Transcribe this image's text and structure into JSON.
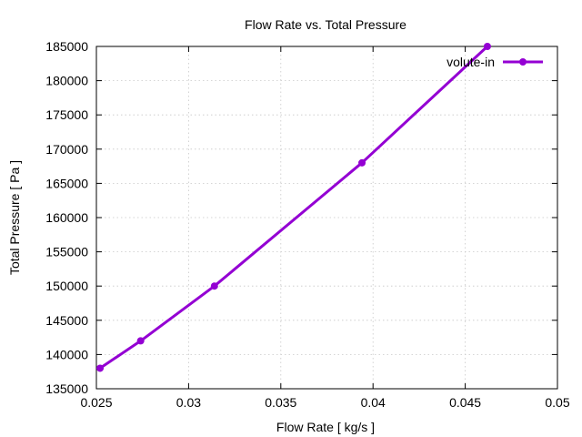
{
  "chart_data": {
    "type": "line",
    "title": "Flow Rate vs. Total Pressure",
    "xlabel": "Flow Rate [ kg/s ]",
    "ylabel": "Total Pressure [ Pa ]",
    "xlim": [
      0.025,
      0.05
    ],
    "ylim": [
      135000,
      185000
    ],
    "xticks": [
      0.025,
      0.03,
      0.035,
      0.04,
      0.045,
      0.05
    ],
    "xtick_labels": [
      "0.025",
      "0.03",
      "0.035",
      "0.04",
      "0.045",
      "0.05"
    ],
    "yticks": [
      135000,
      140000,
      145000,
      150000,
      155000,
      160000,
      165000,
      170000,
      175000,
      180000,
      185000
    ],
    "ytick_labels": [
      "135000",
      "140000",
      "145000",
      "150000",
      "155000",
      "160000",
      "165000",
      "170000",
      "175000",
      "180000",
      "185000"
    ],
    "grid": true,
    "legend_position": "top-right",
    "series": [
      {
        "name": "volute-in",
        "color": "#9400d3",
        "x": [
          0.0252,
          0.0274,
          0.0314,
          0.0394,
          0.0462
        ],
        "y": [
          138000,
          142000,
          150000,
          168000,
          185000
        ]
      }
    ]
  }
}
